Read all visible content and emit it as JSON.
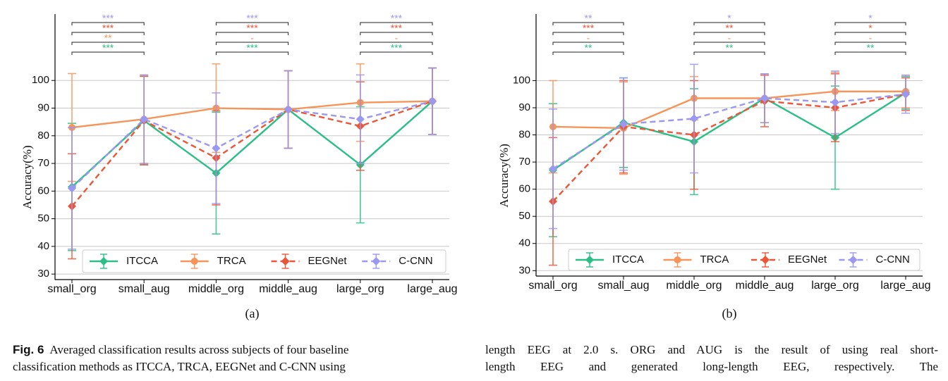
{
  "chart_data": [
    {
      "type": "line",
      "panel_label": "(a)",
      "ylabel": "Accuracy(%)",
      "categories": [
        "small_org",
        "small_aug",
        "middle_org",
        "middle_aug",
        "large_org",
        "large_aug"
      ],
      "ylim": [
        28,
        124
      ],
      "yticks": [
        30,
        40,
        50,
        60,
        70,
        80,
        90,
        100
      ],
      "grid": true,
      "legend": "lower center",
      "series": [
        {
          "name": "ITCCA",
          "color": "#2bbf87",
          "marker": "diamond",
          "dash": false,
          "values": [
            61.5,
            85.5,
            66.5,
            89.5,
            69.5,
            92.5
          ],
          "errors": [
            23,
            16,
            22,
            14,
            21,
            12
          ]
        },
        {
          "name": "TRCA",
          "color": "#f5955a",
          "marker": "circle",
          "dash": false,
          "values": [
            83,
            86,
            90,
            89.5,
            92,
            92.5
          ],
          "errors": [
            19.5,
            16,
            16,
            14,
            14,
            12
          ]
        },
        {
          "name": "EEGNet",
          "color": "#ec5638",
          "marker": "diamond",
          "dash": true,
          "values": [
            54.5,
            85.5,
            72,
            89.5,
            83.5,
            92.5
          ],
          "errors": [
            19,
            16,
            17,
            14,
            16,
            12
          ]
        },
        {
          "name": "C-CNN",
          "color": "#9b98f2",
          "marker": "diamond",
          "dash": true,
          "values": [
            61,
            86,
            75.5,
            89.5,
            86,
            92.5
          ],
          "errors": [
            22,
            16,
            20,
            14,
            16,
            12
          ]
        }
      ],
      "annotations": [
        {
          "x": [
            "small_org",
            "small_aug"
          ],
          "labels": [
            "***",
            "**",
            "***",
            "***"
          ]
        },
        {
          "x": [
            "middle_org",
            "middle_aug"
          ],
          "labels": [
            "***",
            "-",
            "***",
            "***"
          ]
        },
        {
          "x": [
            "large_org",
            "large_aug"
          ],
          "labels": [
            "***",
            "-",
            "***",
            "***"
          ]
        }
      ]
    },
    {
      "type": "line",
      "panel_label": "(b)",
      "ylabel": "Accuracy(%)",
      "categories": [
        "small_org",
        "small_aug",
        "middle_org",
        "middle_aug",
        "large_org",
        "large_aug"
      ],
      "ylim": [
        28,
        124.5
      ],
      "yticks": [
        30,
        40,
        50,
        60,
        70,
        80,
        90,
        100
      ],
      "grid": true,
      "legend": "lower center",
      "series": [
        {
          "name": "ITCCA",
          "color": "#2bbf87",
          "marker": "diamond",
          "dash": false,
          "values": [
            67,
            84.5,
            77.5,
            93.5,
            79,
            95.5
          ],
          "errors": [
            24.5,
            16.5,
            19.5,
            9,
            19,
            6
          ]
        },
        {
          "name": "TRCA",
          "color": "#f5955a",
          "marker": "circle",
          "dash": false,
          "values": [
            83,
            82.5,
            93.5,
            93.5,
            96,
            96
          ],
          "errors": [
            17,
            17,
            8,
            9,
            7,
            6
          ]
        },
        {
          "name": "EEGNet",
          "color": "#ec5638",
          "marker": "diamond",
          "dash": true,
          "values": [
            55.5,
            83,
            80,
            92.5,
            90,
            95
          ],
          "errors": [
            23.5,
            17,
            20,
            9.5,
            12.5,
            6
          ]
        },
        {
          "name": "C-CNN",
          "color": "#9b98f2",
          "marker": "diamond",
          "dash": true,
          "values": [
            67.5,
            84,
            86,
            93.5,
            92,
            95
          ],
          "errors": [
            22,
            17,
            20,
            9,
            11.5,
            7
          ]
        }
      ],
      "annotations": [
        {
          "x": [
            "small_org",
            "small_aug"
          ],
          "labels": [
            "**",
            "-",
            "***",
            "**"
          ]
        },
        {
          "x": [
            "middle_org",
            "middle_aug"
          ],
          "labels": [
            "**",
            "-",
            "**",
            "*"
          ]
        },
        {
          "x": [
            "large_org",
            "large_aug"
          ],
          "labels": [
            "**",
            "-",
            "*",
            "*"
          ]
        }
      ]
    }
  ],
  "caption": {
    "label": "Fig. 6",
    "left": [
      "Averaged classification results across subjects of four baseline",
      "classification methods as ITCCA, TRCA, EEGNet and C-CNN using"
    ],
    "right": [
      "length EEG at 2.0 s. ORG and AUG is the result of using real short-",
      "length EEG and generated long-length EEG, respectively. The"
    ]
  }
}
